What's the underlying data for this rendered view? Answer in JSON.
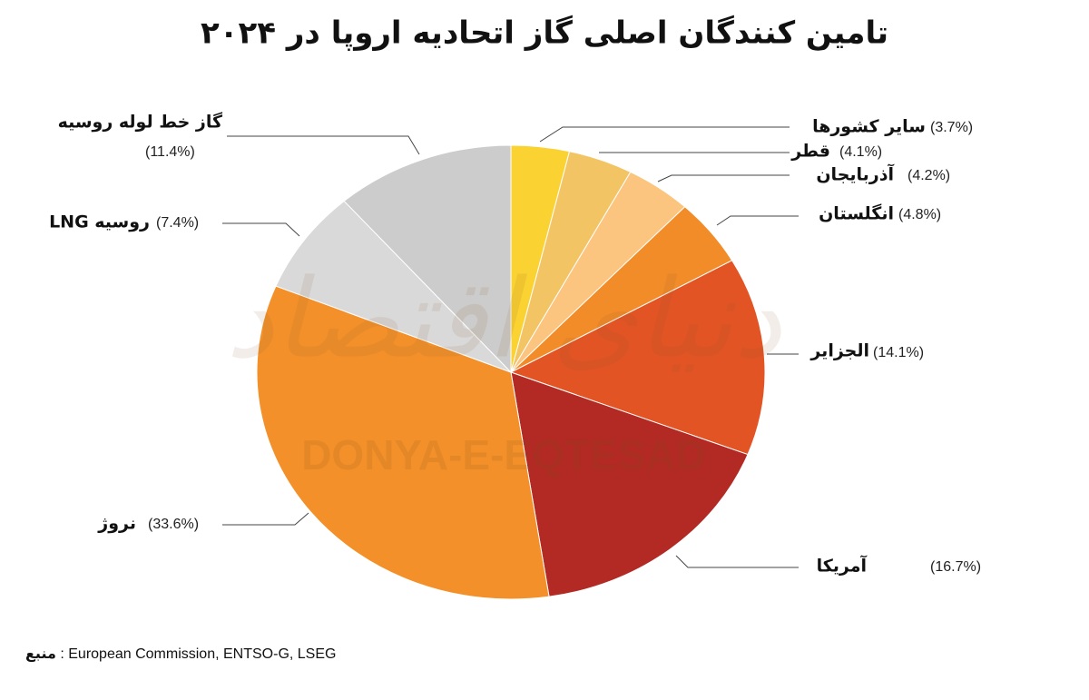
{
  "chart_data": {
    "type": "pie",
    "title": "تامین کنندگان اصلی گاز اتحادیه اروپا در ۲۰۲۴",
    "categories": [
      "سایر کشورها",
      "قطر",
      "آذربایجان",
      "انگلستان",
      "الجزایر",
      "آمریکا",
      "نروژ",
      "LNG روسیه",
      "گاز خط لوله روسیه"
    ],
    "values": [
      3.7,
      4.1,
      4.2,
      4.8,
      14.1,
      16.7,
      33.6,
      7.4,
      11.4
    ],
    "value_labels": [
      "(3.7%)",
      "(4.1%)",
      "(4.2%)",
      "(4.8%)",
      "(14.1%)",
      "(16.7%)",
      "(33.6%)",
      "(7.4%)",
      "(11.4%)"
    ],
    "colors": [
      "#fad232",
      "#f2c464",
      "#fbc57f",
      "#f28c28",
      "#e35425",
      "#b22a23",
      "#f39029",
      "#d9d9d9",
      "#cccccc"
    ],
    "watermark": [
      "DONYA-E-EQTESAD",
      "دنیای اقتصاد"
    ],
    "source_label": "منبع",
    "source_text": ": European Commission, ENTSO-G, LSEG"
  }
}
